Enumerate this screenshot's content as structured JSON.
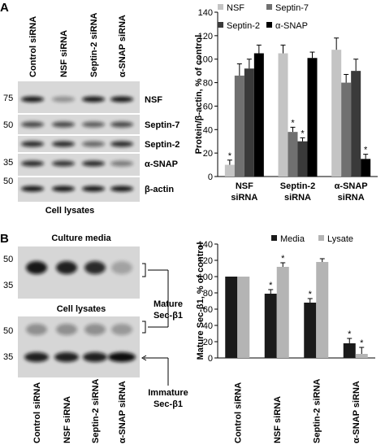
{
  "panel_a": {
    "letter": "A",
    "lanes": [
      "Control siRNA",
      "NSF siRNA",
      "Septin-2 siRNA",
      "α-SNAP siRNA"
    ],
    "mw": [
      75,
      50,
      35,
      50
    ],
    "proteins": [
      "NSF",
      "Septin-7",
      "Septin-2",
      "α-SNAP",
      "β-actin"
    ],
    "caption": "Cell lysates"
  },
  "panel_b": {
    "letter": "B",
    "media_title": "Culture media",
    "lysates_title": "Cell lysates",
    "mw": [
      50,
      35,
      50,
      35
    ],
    "mature": [
      "Mature",
      "Sec-β1"
    ],
    "immature": [
      "Immature",
      "Sec-β1"
    ],
    "lanes": [
      "Control siRNA",
      "NSF siRNA",
      "Septin-2 siRNA",
      "α-SNAP siRNA"
    ]
  },
  "chart_data": [
    {
      "type": "bar",
      "ylabel": "Protein/β-actin, % of control",
      "categories": [
        "NSF siRNA",
        "Septin-2 siRNA",
        "α-SNAP siRNA"
      ],
      "series": [
        {
          "name": "NSF",
          "color": "#c4c4c4",
          "values": [
            10,
            105,
            108
          ],
          "errors": [
            4,
            7,
            10
          ],
          "annotations": [
            "*",
            null,
            null
          ]
        },
        {
          "name": "Septin-7",
          "color": "#707070",
          "values": [
            86,
            38,
            80
          ],
          "errors": [
            10,
            4,
            7
          ],
          "annotations": [
            null,
            "*",
            null
          ]
        },
        {
          "name": "Septin-2",
          "color": "#3a3a3a",
          "values": [
            92,
            30,
            90
          ],
          "errors": [
            8,
            3,
            10
          ],
          "annotations": [
            null,
            "*",
            null
          ]
        },
        {
          "name": "α-SNAP",
          "color": "#000000",
          "values": [
            105,
            101,
            15
          ],
          "errors": [
            7,
            5,
            4
          ],
          "annotations": [
            null,
            null,
            "*"
          ]
        }
      ],
      "ylim": [
        0,
        140
      ],
      "yticks": [
        0,
        20,
        40,
        60,
        80,
        100,
        120,
        140
      ],
      "grid": false,
      "legend": "top"
    },
    {
      "type": "bar",
      "ylabel": "Mature Sec-β1, % of control",
      "categories": [
        "Control siRNA",
        "NSF siRNA",
        "Septin-2 siRNA",
        "α-SNAP siRNA"
      ],
      "series": [
        {
          "name": "Media",
          "color": "#1a1a1a",
          "values": [
            100,
            79,
            68,
            18
          ],
          "errors": [
            0,
            5,
            5,
            6
          ],
          "annotations": [
            null,
            "*",
            "*",
            "*"
          ]
        },
        {
          "name": "Lysate",
          "color": "#b4b4b4",
          "values": [
            100,
            112,
            118,
            5
          ],
          "errors": [
            0,
            5,
            4,
            8
          ],
          "annotations": [
            null,
            "*",
            null,
            "*"
          ]
        }
      ],
      "ylim": [
        0,
        140
      ],
      "yticks": [
        0,
        20,
        40,
        60,
        80,
        100,
        120,
        140
      ],
      "grid": false,
      "legend": "top"
    }
  ]
}
